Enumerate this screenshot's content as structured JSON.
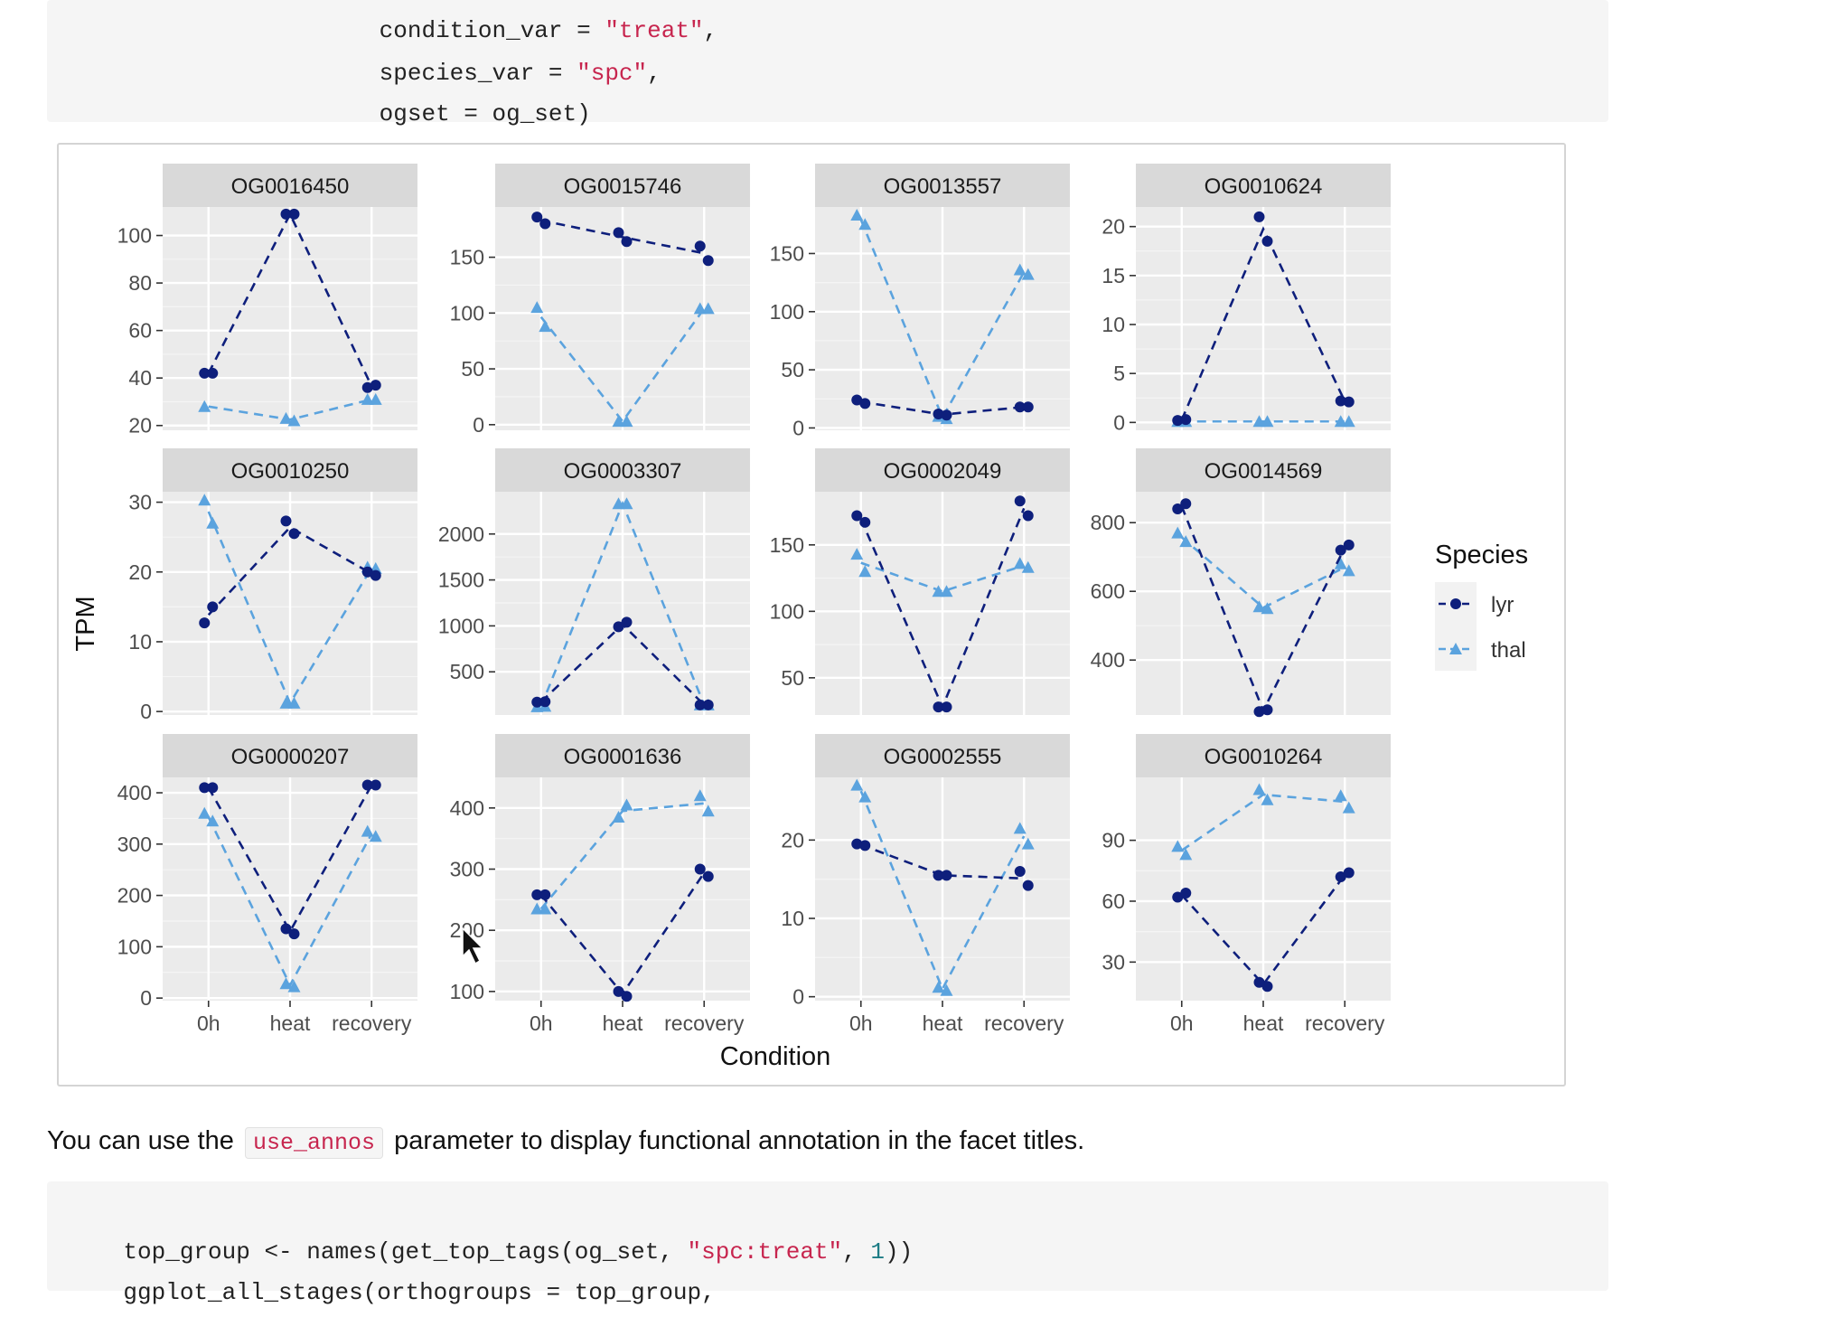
{
  "code_top": {
    "lines": [
      {
        "pre": "                 condition_var = ",
        "str": "\"treat\"",
        "post": ","
      },
      {
        "pre": "                 species_var = ",
        "str": "\"spc\"",
        "post": ","
      },
      {
        "pre": "                 ogset = og_set)",
        "str": "",
        "post": ""
      }
    ]
  },
  "prose": {
    "before": "You can use the",
    "code": "use_annos",
    "after": "parameter to display functional annotation in the facet titles."
  },
  "code_bottom": {
    "line1": {
      "pre": "top_group <- names(get_top_tags(og_set, ",
      "str": "\"spc:treat\"",
      "mid": ", ",
      "num": "1",
      "post": "))"
    },
    "line2": "ggplot_all_stages(orthogroups = top_group,"
  },
  "colors": {
    "lyr": "#0e1f7c",
    "thal": "#5ba3de",
    "panel_bg": "#ebebeb",
    "strip_bg": "#d9d9d9",
    "grid": "#ffffff"
  },
  "chart_data": {
    "type": "line",
    "xlabel": "Condition",
    "ylabel": "TPM",
    "legend": {
      "title": "Species",
      "position": "right"
    },
    "grid": true,
    "categories": [
      "0h",
      "heat",
      "recovery"
    ],
    "series_names": [
      "lyr",
      "thal"
    ],
    "panels": [
      {
        "title": "OG0016450",
        "ylim": [
          18,
          112
        ],
        "yticks": [
          20,
          40,
          60,
          80,
          100
        ],
        "lyr": {
          "points": [
            [
              0,
              42
            ],
            [
              0,
              42
            ],
            [
              1,
              109
            ],
            [
              1,
              109
            ],
            [
              2,
              36
            ],
            [
              2,
              37
            ]
          ],
          "means": [
            42,
            109,
            36.5
          ]
        },
        "thal": {
          "points": [
            [
              0,
              28
            ],
            [
              1,
              23
            ],
            [
              1,
              22
            ],
            [
              2,
              31
            ],
            [
              2,
              31
            ]
          ],
          "means": [
            28,
            22.5,
            31
          ]
        }
      },
      {
        "title": "OG0015746",
        "ylim": [
          -5,
          195
        ],
        "yticks": [
          0,
          50,
          100,
          150
        ],
        "lyr": {
          "points": [
            [
              0,
              186
            ],
            [
              0,
              180
            ],
            [
              1,
              172
            ],
            [
              1,
              164
            ],
            [
              2,
              160
            ],
            [
              2,
              147
            ]
          ],
          "means": [
            183,
            168,
            153.5
          ]
        },
        "thal": {
          "points": [
            [
              0,
              105
            ],
            [
              0,
              88
            ],
            [
              1,
              3
            ],
            [
              1,
              3
            ],
            [
              2,
              104
            ],
            [
              2,
              104
            ]
          ],
          "means": [
            96.5,
            3,
            104
          ]
        }
      },
      {
        "title": "OG0013557",
        "ylim": [
          -2,
          190
        ],
        "yticks": [
          0,
          50,
          100,
          150
        ],
        "lyr": {
          "points": [
            [
              0,
              24
            ],
            [
              0,
              21
            ],
            [
              1,
              12
            ],
            [
              1,
              11
            ],
            [
              2,
              18
            ],
            [
              2,
              18
            ]
          ],
          "means": [
            22.5,
            11.5,
            18
          ]
        },
        "thal": {
          "points": [
            [
              0,
              183
            ],
            [
              0,
              175
            ],
            [
              1,
              10
            ],
            [
              1,
              8
            ],
            [
              2,
              136
            ],
            [
              2,
              132
            ]
          ],
          "means": [
            179,
            9,
            134
          ]
        }
      },
      {
        "title": "OG0010624",
        "ylim": [
          -0.8,
          22
        ],
        "yticks": [
          0,
          5,
          10,
          15,
          20
        ],
        "lyr": {
          "points": [
            [
              0,
              0.2
            ],
            [
              0,
              0.3
            ],
            [
              1,
              21
            ],
            [
              1,
              18.5
            ],
            [
              2,
              2.2
            ],
            [
              2,
              2.1
            ]
          ],
          "means": [
            0.25,
            19.75,
            2.15
          ]
        },
        "thal": {
          "points": [
            [
              0,
              0.1
            ],
            [
              0,
              0.1
            ],
            [
              1,
              0.1
            ],
            [
              1,
              0.1
            ],
            [
              2,
              0.1
            ],
            [
              2,
              0.1
            ]
          ],
          "means": [
            0.1,
            0.1,
            0.1
          ]
        }
      },
      {
        "title": "OG0010250",
        "ylim": [
          -0.5,
          31.5
        ],
        "yticks": [
          0,
          10,
          20,
          30
        ],
        "lyr": {
          "points": [
            [
              0,
              12.7
            ],
            [
              0,
              15
            ],
            [
              1,
              27.3
            ],
            [
              1,
              25.5
            ],
            [
              2,
              20
            ],
            [
              2,
              19.5
            ]
          ],
          "means": [
            13.85,
            26.4,
            19.75
          ]
        },
        "thal": {
          "points": [
            [
              0,
              30.3
            ],
            [
              0,
              27
            ],
            [
              1,
              1.2
            ],
            [
              1,
              1.2
            ],
            [
              2,
              20.7
            ],
            [
              2,
              20.5
            ]
          ],
          "means": [
            28.65,
            1.2,
            20.6
          ]
        }
      },
      {
        "title": "OG0003307",
        "ylim": [
          30,
          2460
        ],
        "yticks": [
          500,
          1000,
          1500,
          2000
        ],
        "lyr": {
          "points": [
            [
              0,
              170
            ],
            [
              0,
              175
            ],
            [
              1,
              990
            ],
            [
              1,
              1040
            ],
            [
              2,
              140
            ],
            [
              2,
              140
            ]
          ],
          "means": [
            172.5,
            1015,
            140
          ]
        },
        "thal": {
          "points": [
            [
              0,
              120
            ],
            [
              0,
              125
            ],
            [
              1,
              2330
            ],
            [
              1,
              2330
            ],
            [
              2,
              140
            ],
            [
              2,
              140
            ]
          ],
          "means": [
            122.5,
            2330,
            140
          ]
        }
      },
      {
        "title": "OG0002049",
        "ylim": [
          22,
          190
        ],
        "yticks": [
          50,
          100,
          150
        ],
        "lyr": {
          "points": [
            [
              0,
              172
            ],
            [
              0,
              167
            ],
            [
              1,
              28
            ],
            [
              1,
              28
            ],
            [
              2,
              183
            ],
            [
              2,
              172
            ]
          ],
          "means": [
            169.5,
            28,
            177.5
          ]
        },
        "thal": {
          "points": [
            [
              0,
              143
            ],
            [
              0,
              130
            ],
            [
              1,
              115
            ],
            [
              1,
              115
            ],
            [
              2,
              136
            ],
            [
              2,
              133
            ]
          ],
          "means": [
            136.5,
            115,
            134.5
          ]
        }
      },
      {
        "title": "OG0014569",
        "ylim": [
          240,
          890
        ],
        "yticks": [
          400,
          600,
          800
        ],
        "lyr": {
          "points": [
            [
              0,
              840
            ],
            [
              0,
              855
            ],
            [
              1,
              250
            ],
            [
              1,
              255
            ],
            [
              2,
              720
            ],
            [
              2,
              735
            ]
          ],
          "means": [
            847.5,
            252.5,
            727.5
          ]
        },
        "thal": {
          "points": [
            [
              0,
              770
            ],
            [
              0,
              745
            ],
            [
              1,
              555
            ],
            [
              1,
              550
            ],
            [
              2,
              680
            ],
            [
              2,
              660
            ]
          ],
          "means": [
            757.5,
            552.5,
            670
          ]
        }
      },
      {
        "title": "OG0000207",
        "ylim": [
          -5,
          430
        ],
        "yticks": [
          0,
          100,
          200,
          300,
          400
        ],
        "lyr": {
          "points": [
            [
              0,
              410
            ],
            [
              0,
              410
            ],
            [
              1,
              135
            ],
            [
              1,
              125
            ],
            [
              2,
              415
            ],
            [
              2,
              415
            ]
          ],
          "means": [
            410,
            130,
            415
          ]
        },
        "thal": {
          "points": [
            [
              0,
              360
            ],
            [
              0,
              345
            ],
            [
              1,
              28
            ],
            [
              1,
              22
            ],
            [
              2,
              325
            ],
            [
              2,
              315
            ]
          ],
          "means": [
            352.5,
            25,
            320
          ]
        }
      },
      {
        "title": "OG0001636",
        "ylim": [
          85,
          450
        ],
        "yticks": [
          100,
          200,
          300,
          400
        ],
        "lyr": {
          "points": [
            [
              0,
              258
            ],
            [
              0,
              258
            ],
            [
              1,
              100
            ],
            [
              1,
              92
            ],
            [
              2,
              300
            ],
            [
              2,
              288
            ]
          ],
          "means": [
            258,
            96,
            294
          ]
        },
        "thal": {
          "points": [
            [
              0,
              235
            ],
            [
              0,
              235
            ],
            [
              1,
              385
            ],
            [
              1,
              405
            ],
            [
              2,
              420
            ],
            [
              2,
              395
            ]
          ],
          "means": [
            235,
            395,
            407.5
          ]
        }
      },
      {
        "title": "OG0002555",
        "ylim": [
          -0.5,
          28
        ],
        "yticks": [
          0,
          10,
          20
        ],
        "lyr": {
          "points": [
            [
              0,
              19.5
            ],
            [
              0,
              19.3
            ],
            [
              1,
              15.5
            ],
            [
              1,
              15.5
            ],
            [
              2,
              16
            ],
            [
              2,
              14.2
            ]
          ],
          "means": [
            19.4,
            15.5,
            15.1
          ]
        },
        "thal": {
          "points": [
            [
              0,
              27
            ],
            [
              0,
              25.5
            ],
            [
              1,
              1.2
            ],
            [
              1,
              0.8
            ],
            [
              2,
              21.5
            ],
            [
              2,
              19.5
            ]
          ],
          "means": [
            26.25,
            1,
            20.5
          ]
        }
      },
      {
        "title": "OG0010264",
        "ylim": [
          11,
          121
        ],
        "yticks": [
          30,
          60,
          90
        ],
        "lyr": {
          "points": [
            [
              0,
              62
            ],
            [
              0,
              64
            ],
            [
              1,
              20
            ],
            [
              1,
              18
            ],
            [
              2,
              72
            ],
            [
              2,
              74
            ]
          ],
          "means": [
            63,
            19,
            73
          ]
        },
        "thal": {
          "points": [
            [
              0,
              87
            ],
            [
              0,
              83
            ],
            [
              1,
              115
            ],
            [
              1,
              110
            ],
            [
              2,
              112
            ],
            [
              2,
              106
            ]
          ],
          "means": [
            85,
            112.5,
            109
          ]
        }
      }
    ]
  }
}
